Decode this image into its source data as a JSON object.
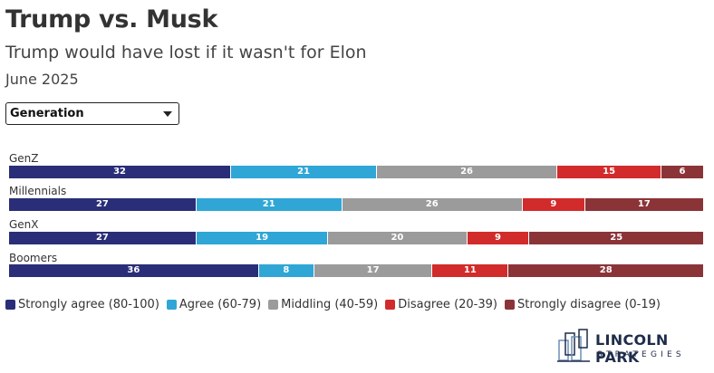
{
  "title": "Trump vs. Musk",
  "subtitle": "Trump would have lost if it wasn't for Elon",
  "date": "June 2025",
  "dropdown": {
    "selected": "Generation"
  },
  "legend": [
    {
      "label": "Strongly agree (80-100)",
      "color": "#2a2e78"
    },
    {
      "label": "Agree (60-79)",
      "color": "#2fa6d6"
    },
    {
      "label": "Middling (40-59)",
      "color": "#9b9b9b"
    },
    {
      "label": "Disagree (20-39)",
      "color": "#d22b2b"
    },
    {
      "label": "Strongly disagree (0-19)",
      "color": "#8b3438"
    }
  ],
  "logo": {
    "line1": "LINCOLN PARK",
    "line2": "STRATEGIES"
  },
  "chart_data": {
    "type": "bar",
    "orientation": "horizontal-stacked-100",
    "categories": [
      "GenZ",
      "Millennials",
      "GenX",
      "Boomers"
    ],
    "series": [
      {
        "name": "Strongly agree (80-100)",
        "values": [
          32,
          27,
          27,
          36
        ]
      },
      {
        "name": "Agree (60-79)",
        "values": [
          21,
          21,
          19,
          8
        ]
      },
      {
        "name": "Middling (40-59)",
        "values": [
          26,
          26,
          20,
          17
        ]
      },
      {
        "name": "Disagree (20-39)",
        "values": [
          15,
          9,
          9,
          11
        ]
      },
      {
        "name": "Strongly disagree (0-19)",
        "values": [
          6,
          17,
          25,
          28
        ]
      }
    ],
    "legend_position": "bottom"
  }
}
